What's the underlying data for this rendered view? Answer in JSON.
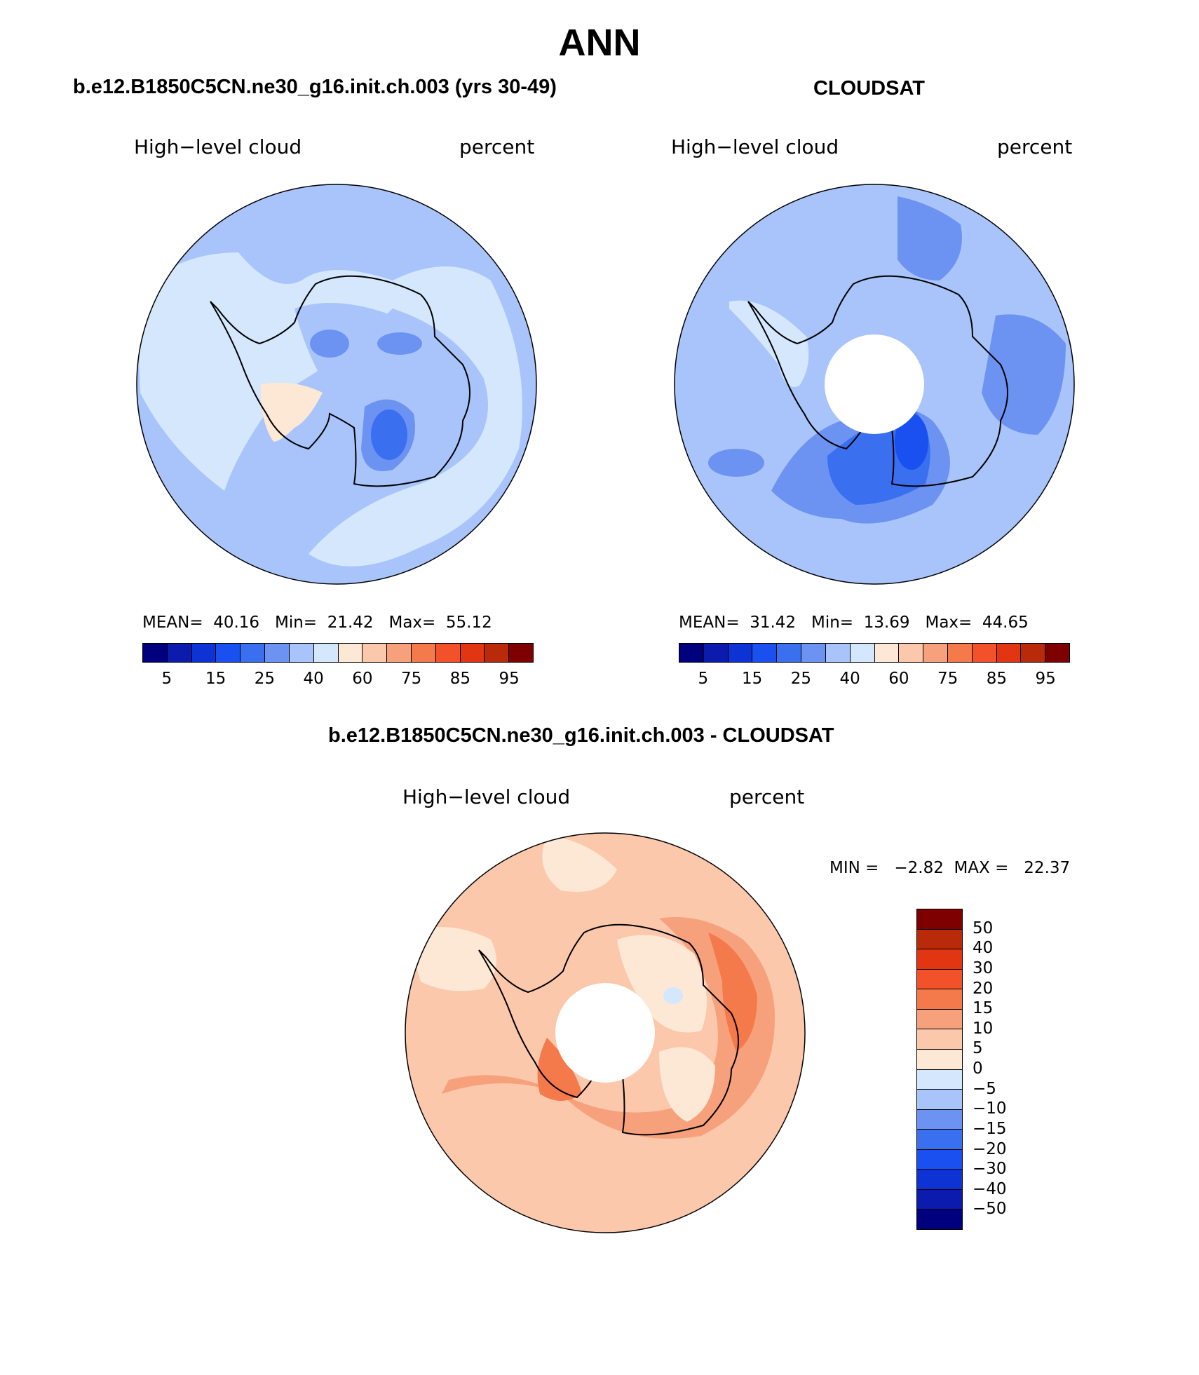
{
  "title": "ANN",
  "colors": {
    "scale_21": [
      "#00007f",
      "#0a1bae",
      "#0d33d4",
      "#1a50f0",
      "#3a6ff0",
      "#6c93f2",
      "#a8c4fa",
      "#d4e7fc",
      "#fde8d6",
      "#fbc8ac",
      "#f7a07c",
      "#f47a4c",
      "#f2512a",
      "#e23612",
      "#b82a0a",
      "#7f0000"
    ],
    "diff_scale": [
      "#7f0000",
      "#b82a0a",
      "#e23612",
      "#f2512a",
      "#f47a4c",
      "#f7a07c",
      "#fbc8ac",
      "#fde8d6",
      "#d4e7fc",
      "#a8c4fa",
      "#6c93f2",
      "#3a6ff0",
      "#1a50f0",
      "#0d33d4",
      "#0a1bae",
      "#00007f"
    ]
  },
  "panels": {
    "model": {
      "title": "b.e12.B1850C5CN.ne30_g16.init.ch.003 (yrs 30-49)",
      "variable": "High−level cloud",
      "units": "percent",
      "stats": "MEAN=  40.16   Min=  21.42   Max=  55.12",
      "colorbar_labels": [
        "5",
        "15",
        "25",
        "40",
        "60",
        "75",
        "85",
        "95"
      ]
    },
    "obs": {
      "title": "CLOUDSAT",
      "variable": "High−level cloud",
      "units": "percent",
      "stats": "MEAN=  31.42   Min=  13.69   Max=  44.65",
      "colorbar_labels": [
        "5",
        "15",
        "25",
        "40",
        "60",
        "75",
        "85",
        "95"
      ]
    },
    "diff": {
      "title": "b.e12.B1850C5CN.ne30_g16.init.ch.003 - CLOUDSAT",
      "variable": "High−level cloud",
      "units": "percent",
      "stats": "MIN =   −2.82  MAX =   22.37",
      "colorbar_labels": [
        "50",
        "40",
        "30",
        "20",
        "15",
        "10",
        "5",
        "0",
        "−5",
        "−10",
        "−15",
        "−20",
        "−30",
        "−40",
        "−50"
      ]
    }
  }
}
